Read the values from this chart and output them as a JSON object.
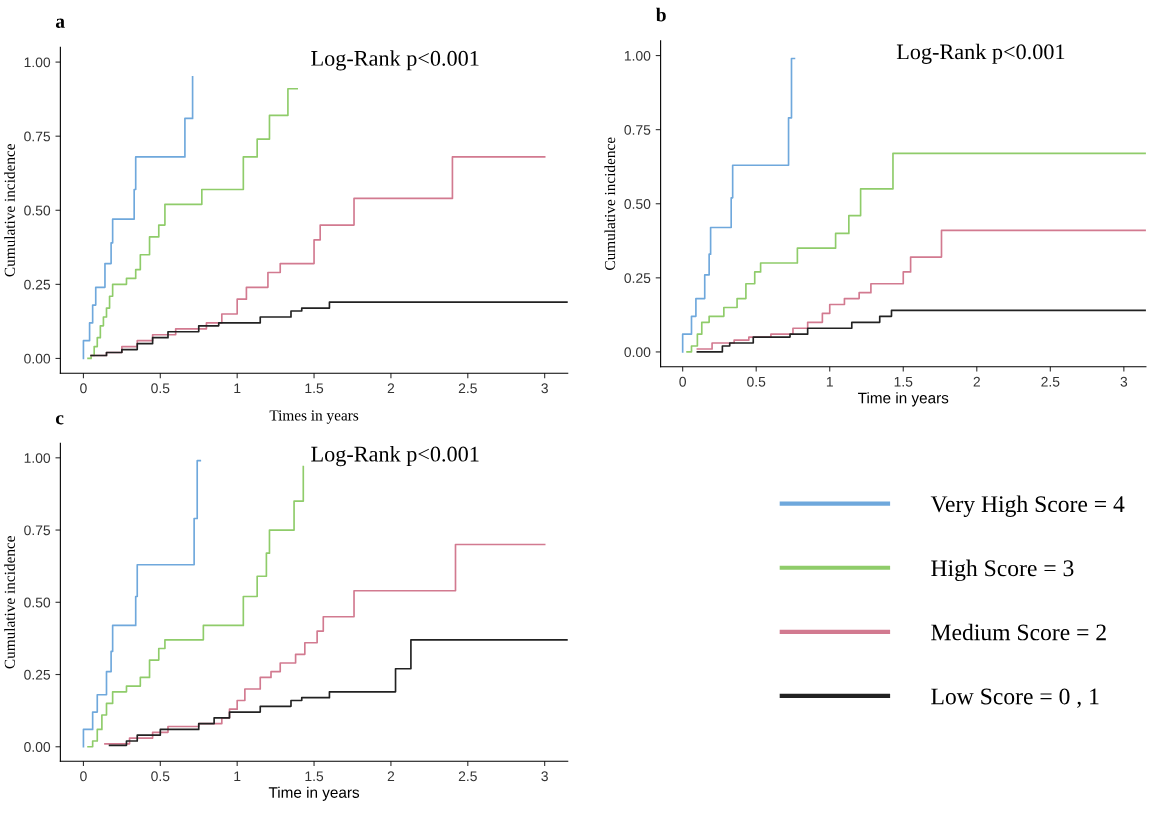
{
  "chart_data": [
    {
      "type": "step",
      "title": "a",
      "xlabel": "Times in years",
      "ylabel": "Cumulative incidence",
      "annotations": [
        "Log-Rank p<0.001"
      ],
      "grid": false,
      "xlim": [
        -0.15,
        3.15
      ],
      "ylim": [
        -0.05,
        1.05
      ],
      "xticks": [
        0,
        {
          "value": 0.5,
          "label": "0.5"
        },
        1,
        {
          "value": 1.5,
          "label": "1.5"
        },
        2,
        {
          "value": 2.5,
          "label": "2.5"
        },
        3
      ],
      "yticks": [
        {
          "value": 0,
          "label": "0.00"
        },
        {
          "value": 0.25,
          "label": "0.25"
        },
        {
          "value": 0.5,
          "label": "0.50"
        },
        {
          "value": 0.75,
          "label": "0.75"
        },
        {
          "value": 1,
          "label": "1.00"
        }
      ],
      "series": [
        {
          "color": "#6fa8dc",
          "x": [
            0,
            0,
            0.04,
            0.06,
            0.08,
            0.14,
            0.18,
            0.19,
            0.33,
            0.34,
            0.66,
            0.71
          ],
          "values": [
            0,
            0.06,
            0.12,
            0.18,
            0.24,
            0.32,
            0.39,
            0.47,
            0.57,
            0.68,
            0.81,
            0.95
          ]
        },
        {
          "color": "#8fcc6a",
          "x": [
            0.03,
            0.05,
            0.07,
            0.09,
            0.11,
            0.13,
            0.15,
            0.17,
            0.19,
            0.28,
            0.34,
            0.37,
            0.43,
            0.49,
            0.53,
            0.77,
            1.04,
            1.13,
            1.21,
            1.33,
            1.39
          ],
          "values": [
            0,
            0.01,
            0.04,
            0.07,
            0.11,
            0.14,
            0.17,
            0.21,
            0.25,
            0.27,
            0.3,
            0.35,
            0.41,
            0.45,
            0.52,
            0.57,
            0.68,
            0.74,
            0.82,
            0.91,
            0.91
          ]
        },
        {
          "color": "#d27a90",
          "x": [
            0.05,
            0.15,
            0.25,
            0.35,
            0.45,
            0.6,
            0.8,
            0.9,
            1.0,
            1.06,
            1.2,
            1.28,
            1.5,
            1.54,
            1.76,
            2.4,
            3.0
          ],
          "values": [
            0.01,
            0.02,
            0.04,
            0.06,
            0.08,
            0.1,
            0.12,
            0.15,
            0.2,
            0.24,
            0.29,
            0.32,
            0.4,
            0.45,
            0.54,
            0.68,
            0.68
          ]
        },
        {
          "color": "#222222",
          "x": [
            0.05,
            0.15,
            0.25,
            0.35,
            0.45,
            0.55,
            0.75,
            0.88,
            1.15,
            1.35,
            1.42,
            1.6,
            3.15
          ],
          "values": [
            0.01,
            0.02,
            0.03,
            0.05,
            0.07,
            0.09,
            0.11,
            0.12,
            0.14,
            0.16,
            0.17,
            0.19,
            0.19
          ]
        }
      ]
    },
    {
      "type": "step",
      "title": "b",
      "xlabel": "Time in years",
      "ylabel": "Cumulative incidence",
      "annotations": [
        "Log-Rank p<0.001"
      ],
      "grid": false,
      "xlim": [
        -0.15,
        3.15
      ],
      "ylim": [
        -0.05,
        1.05
      ],
      "xticks": [
        0,
        {
          "value": 0.5,
          "label": "0.5"
        },
        1,
        {
          "value": 1.5,
          "label": "1.5"
        },
        2,
        {
          "value": 2.5,
          "label": "2.5"
        },
        3
      ],
      "yticks": [
        {
          "value": 0,
          "label": "0.00"
        },
        {
          "value": 0.25,
          "label": "0.25"
        },
        {
          "value": 0.5,
          "label": "0.50"
        },
        {
          "value": 0.75,
          "label": "0.75"
        },
        {
          "value": 1,
          "label": "1.00"
        }
      ],
      "series": [
        {
          "color": "#6fa8dc",
          "x": [
            0,
            0,
            0.06,
            0.09,
            0.15,
            0.18,
            0.19,
            0.33,
            0.34,
            0.72,
            0.74,
            0.76
          ],
          "values": [
            0,
            0.06,
            0.12,
            0.18,
            0.26,
            0.33,
            0.42,
            0.52,
            0.63,
            0.79,
            0.99,
            0.99
          ]
        },
        {
          "color": "#8fcc6a",
          "x": [
            0.03,
            0.06,
            0.1,
            0.13,
            0.18,
            0.28,
            0.37,
            0.43,
            0.49,
            0.53,
            0.78,
            1.04,
            1.13,
            1.21,
            1.43,
            3.15
          ],
          "values": [
            0,
            0.02,
            0.06,
            0.1,
            0.12,
            0.15,
            0.18,
            0.23,
            0.27,
            0.3,
            0.35,
            0.4,
            0.46,
            0.55,
            0.67,
            0.67
          ]
        },
        {
          "color": "#d27a90",
          "x": [
            0.1,
            0.2,
            0.35,
            0.45,
            0.6,
            0.75,
            0.85,
            0.95,
            1.0,
            1.1,
            1.2,
            1.28,
            1.5,
            1.55,
            1.76,
            3.15
          ],
          "values": [
            0.01,
            0.03,
            0.04,
            0.05,
            0.06,
            0.08,
            0.1,
            0.13,
            0.16,
            0.18,
            0.2,
            0.23,
            0.27,
            0.32,
            0.41,
            0.41
          ]
        },
        {
          "color": "#222222",
          "x": [
            0.1,
            0.27,
            0.32,
            0.48,
            0.73,
            0.85,
            1.15,
            1.34,
            1.42,
            3.15
          ],
          "values": [
            0,
            0.02,
            0.03,
            0.05,
            0.06,
            0.08,
            0.1,
            0.12,
            0.14,
            0.14
          ]
        }
      ]
    },
    {
      "type": "step",
      "title": "c",
      "xlabel": "Time in years",
      "ylabel": "Cumulative incidence",
      "annotations": [
        "Log-Rank p<0.001"
      ],
      "grid": false,
      "legend": "right",
      "xlim": [
        -0.15,
        3.15
      ],
      "ylim": [
        -0.05,
        1.05
      ],
      "xticks": [
        0,
        {
          "value": 0.5,
          "label": "0.5"
        },
        1,
        {
          "value": 1.5,
          "label": "1.5"
        },
        2,
        {
          "value": 2.5,
          "label": "2.5"
        },
        3
      ],
      "yticks": [
        {
          "value": 0,
          "label": "0.00"
        },
        {
          "value": 0.25,
          "label": "0.25"
        },
        {
          "value": 0.5,
          "label": "0.50"
        },
        {
          "value": 0.75,
          "label": "0.75"
        },
        {
          "value": 1,
          "label": "1.00"
        }
      ],
      "series": [
        {
          "name": "Very High Score = 4",
          "color": "#6fa8dc",
          "x": [
            0,
            0,
            0.06,
            0.09,
            0.15,
            0.18,
            0.19,
            0.34,
            0.35,
            0.72,
            0.74,
            0.76
          ],
          "values": [
            0,
            0.06,
            0.12,
            0.18,
            0.26,
            0.33,
            0.42,
            0.52,
            0.63,
            0.79,
            0.99,
            0.99
          ]
        },
        {
          "name": "High Score = 3",
          "color": "#8fcc6a",
          "x": [
            0.03,
            0.06,
            0.09,
            0.12,
            0.15,
            0.19,
            0.28,
            0.37,
            0.43,
            0.49,
            0.53,
            0.78,
            1.04,
            1.13,
            1.19,
            1.21,
            1.37,
            1.43
          ],
          "values": [
            0,
            0.02,
            0.06,
            0.11,
            0.15,
            0.19,
            0.21,
            0.24,
            0.3,
            0.34,
            0.37,
            0.42,
            0.52,
            0.59,
            0.67,
            0.75,
            0.85,
            0.97
          ]
        },
        {
          "name": "Medium Score = 2",
          "color": "#d27a90",
          "x": [
            0.14,
            0.3,
            0.45,
            0.55,
            0.75,
            0.9,
            0.95,
            1.0,
            1.05,
            1.15,
            1.22,
            1.28,
            1.38,
            1.44,
            1.52,
            1.56,
            1.76,
            2.42,
            3.0
          ],
          "values": [
            0.01,
            0.03,
            0.05,
            0.07,
            0.08,
            0.1,
            0.13,
            0.16,
            0.2,
            0.24,
            0.26,
            0.29,
            0.32,
            0.36,
            0.4,
            0.45,
            0.54,
            0.7,
            0.7
          ]
        },
        {
          "name": "Low Score = 0 , 1",
          "color": "#222222",
          "x": [
            0.17,
            0.28,
            0.35,
            0.5,
            0.75,
            0.85,
            0.95,
            1.15,
            1.35,
            1.42,
            1.6,
            2.03,
            2.13,
            3.15
          ],
          "values": [
            0.005,
            0.02,
            0.04,
            0.06,
            0.08,
            0.1,
            0.12,
            0.14,
            0.16,
            0.17,
            0.19,
            0.27,
            0.37,
            0.37
          ]
        }
      ]
    }
  ]
}
